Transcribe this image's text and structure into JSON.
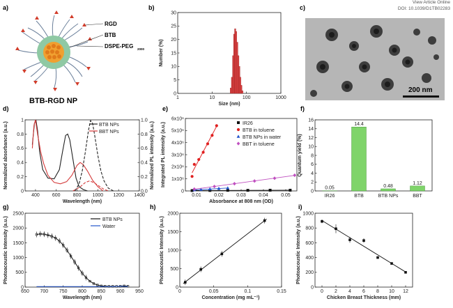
{
  "header": {
    "line1": "View Article Online",
    "line2": "DOI: 10.1039/D1TB02283"
  },
  "panel_letters": [
    "a)",
    "b)",
    "c)",
    "d)",
    "e)",
    "f)",
    "g)",
    "h)",
    "i)"
  ],
  "panel_a": {
    "labels": [
      "RGD",
      "BTB",
      "DSPE-PEG"
    ],
    "peg_subscript": "2000",
    "title": "BTB-RGD NP"
  },
  "panel_c": {
    "scalebar": "200 nm"
  },
  "chart_data": [
    {
      "id": "b",
      "type": "bar",
      "xscale": "log",
      "xlim": [
        1,
        1000
      ],
      "ylim": [
        0,
        30
      ],
      "xlabel": "Size (nm)",
      "ylabel": "Number (%)",
      "xticks": [
        1,
        10,
        100,
        1000
      ],
      "yticks": [
        0,
        5,
        10,
        15,
        20,
        25,
        30
      ],
      "x": [
        35,
        38,
        41,
        44,
        47,
        50,
        54,
        58,
        62,
        66,
        71,
        76
      ],
      "values": [
        2,
        6,
        14,
        22,
        24,
        23,
        19,
        14,
        10,
        6,
        3,
        1
      ],
      "color": "#d94040"
    },
    {
      "id": "d",
      "type": "line",
      "xlim": [
        300,
        1400
      ],
      "ylim": [
        0,
        1.0
      ],
      "xlabel": "Wavelength (nm)",
      "ylabel": "Normalized absorbance (a.u.)",
      "y2label": "Normalized PL intensity (a.u.)",
      "xticks": [
        400,
        600,
        800,
        1000,
        1200,
        1400
      ],
      "yticks": [
        0.0,
        0.2,
        0.4,
        0.6,
        0.8,
        1.0
      ],
      "series": [
        {
          "name": "BTB NPs",
          "color": "#222222",
          "dash": "",
          "x": [
            370,
            390,
            405,
            420,
            440,
            470,
            520,
            580,
            630,
            660,
            690,
            710,
            730,
            760,
            790,
            820,
            860,
            900
          ],
          "y": [
            0.65,
            0.95,
            0.99,
            0.85,
            0.55,
            0.3,
            0.18,
            0.17,
            0.3,
            0.55,
            0.78,
            0.8,
            0.72,
            0.45,
            0.18,
            0.06,
            0.02,
            0.0
          ]
        },
        {
          "name": "BBT NPs",
          "color": "#d43a3a",
          "dash": "",
          "x": [
            370,
            385,
            400,
            420,
            450,
            480,
            520,
            580,
            640,
            700,
            750,
            800,
            830,
            860,
            900,
            950,
            1000,
            1050
          ],
          "y": [
            0.6,
            0.92,
            1.0,
            0.8,
            0.55,
            0.38,
            0.22,
            0.12,
            0.1,
            0.13,
            0.22,
            0.36,
            0.4,
            0.37,
            0.28,
            0.15,
            0.06,
            0.0
          ]
        },
        {
          "name": "",
          "color": "#222222",
          "dash": "4,2",
          "x": [
            780,
            820,
            850,
            880,
            910,
            930,
            950,
            970,
            1000,
            1030,
            1060,
            1100,
            1150
          ],
          "y": [
            0.0,
            0.1,
            0.28,
            0.55,
            0.85,
            0.99,
            0.95,
            0.78,
            0.5,
            0.28,
            0.14,
            0.04,
            0.0
          ]
        },
        {
          "name": "",
          "color": "#d43a3a",
          "dash": "4,2",
          "x": [
            760,
            800,
            840,
            880,
            920,
            960,
            1000,
            1050,
            1100
          ],
          "y": [
            0.0,
            0.03,
            0.07,
            0.12,
            0.14,
            0.12,
            0.08,
            0.03,
            0.0
          ]
        }
      ]
    },
    {
      "id": "e",
      "type": "scatter",
      "xlim": [
        0.005,
        0.055
      ],
      "ylim": [
        0,
        6000000
      ],
      "xlabel": "Absorbance at 808 nm (OD)",
      "ylabel": "Integrated PL intensity (a.u.)",
      "xticks": [
        0.01,
        0.02,
        0.03,
        0.04,
        0.05
      ],
      "yticks": [
        0,
        1000000,
        2000000,
        3000000,
        4000000,
        5000000,
        6000000
      ],
      "ytick_labels": [
        "0",
        "1x10⁶",
        "2x10⁶",
        "3x10⁶",
        "4x10⁶",
        "5x10⁶",
        "6x10⁶"
      ],
      "series": [
        {
          "name": "IR26",
          "color": "#111111",
          "symbol": "square",
          "x": [
            0.008,
            0.016,
            0.024,
            0.033,
            0.043,
            0.052
          ],
          "y": [
            30000,
            40000,
            50000,
            50000,
            60000,
            60000
          ]
        },
        {
          "name": "BTB in toluene",
          "color": "#e02020",
          "symbol": "circle",
          "x": [
            0.008,
            0.009,
            0.011,
            0.013,
            0.015,
            0.017,
            0.019
          ],
          "y": [
            1200000,
            2200000,
            2600000,
            3200000,
            3900000,
            4600000,
            5400000
          ]
        },
        {
          "name": "BTB NPs in water",
          "color": "#2255cc",
          "symbol": "triangle",
          "x": [
            0.009,
            0.012,
            0.016,
            0.02,
            0.024
          ],
          "y": [
            80000,
            120000,
            160000,
            200000,
            240000
          ]
        },
        {
          "name": "BBT in toluene",
          "color": "#c050c0",
          "symbol": "diamond",
          "x": [
            0.009,
            0.018,
            0.027,
            0.036,
            0.045,
            0.054
          ],
          "y": [
            150000,
            370000,
            600000,
            820000,
            1050000,
            1300000
          ]
        }
      ]
    },
    {
      "id": "f",
      "type": "bar",
      "ylim": [
        0,
        16
      ],
      "ylabel": "Quantum yield (%)",
      "categories": [
        "IR26",
        "BTB",
        "BTB NPs",
        "BBT"
      ],
      "values": [
        0.05,
        14.4,
        0.48,
        1.12
      ],
      "value_labels": [
        "0.05",
        "14.4",
        "0.48",
        "1.12"
      ],
      "yticks": [
        0,
        2,
        4,
        6,
        8,
        10,
        12,
        14,
        16
      ],
      "color": "#7fd46a"
    },
    {
      "id": "g",
      "type": "line",
      "xlim": [
        650,
        950
      ],
      "ylim": [
        0,
        2500
      ],
      "xlabel": "Wavelength (nm)",
      "ylabel": "Photoacoustic Intensity (a.u.)",
      "xticks": [
        650,
        700,
        750,
        800,
        850,
        900,
        950
      ],
      "yticks": [
        0,
        500,
        1000,
        1500,
        2000,
        2500
      ],
      "series": [
        {
          "name": "BTB NPs",
          "color": "#111111",
          "x": [
            680,
            690,
            700,
            710,
            720,
            730,
            740,
            750,
            760,
            770,
            780,
            790,
            800,
            810,
            820,
            830,
            840,
            850,
            860,
            870,
            880,
            890,
            900,
            910,
            920
          ],
          "y": [
            1780,
            1800,
            1790,
            1760,
            1720,
            1660,
            1560,
            1420,
            1250,
            1050,
            850,
            650,
            470,
            320,
            200,
            120,
            70,
            40,
            30,
            25,
            25,
            25,
            30,
            40,
            30
          ]
        },
        {
          "name": "Water",
          "color": "#2255cc",
          "x": [
            680,
            700,
            720,
            740,
            760,
            780,
            800,
            820,
            840,
            860,
            880,
            900,
            920
          ],
          "y": [
            20,
            20,
            20,
            20,
            20,
            20,
            20,
            20,
            20,
            20,
            20,
            30,
            20
          ]
        }
      ]
    },
    {
      "id": "h",
      "type": "scatter",
      "xlim": [
        0,
        0.15
      ],
      "ylim": [
        0,
        2000
      ],
      "xlabel": "Concentration (mg mL⁻¹)",
      "ylabel": "Photoacoustic Intensity (a.u.)",
      "xticks": [
        0.0,
        0.05,
        0.1,
        0.15
      ],
      "yticks": [
        0,
        500,
        1000,
        1500,
        2000
      ],
      "x": [
        0.008,
        0.031,
        0.062,
        0.125
      ],
      "y": [
        130,
        480,
        900,
        1800
      ]
    },
    {
      "id": "i",
      "type": "scatter",
      "xlim": [
        -1,
        13
      ],
      "ylim": [
        0,
        1000
      ],
      "xlabel": "Chicken Breast Thickness (mm)",
      "ylabel": "Photoacoustic Intensity (a.u.)",
      "xticks": [
        0,
        2,
        4,
        6,
        8,
        10,
        12
      ],
      "yticks": [
        0,
        200,
        400,
        600,
        800,
        1000
      ],
      "x": [
        0,
        2,
        4,
        6,
        8,
        10,
        12
      ],
      "y": [
        890,
        790,
        640,
        630,
        400,
        320,
        200
      ]
    }
  ]
}
